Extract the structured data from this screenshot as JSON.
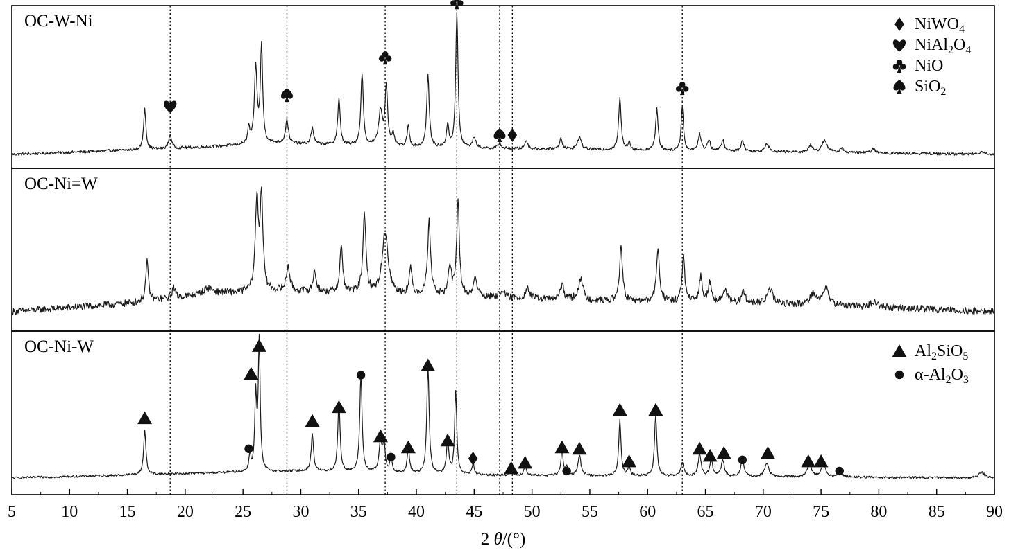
{
  "chart_data": {
    "type": "line",
    "title": "",
    "xlabel_prefix": "2 ",
    "xlabel_symbol": "θ",
    "xlabel_suffix": "/(°)",
    "xlim": [
      5,
      90
    ],
    "xticks": [
      5,
      10,
      15,
      20,
      25,
      30,
      35,
      40,
      45,
      50,
      55,
      60,
      65,
      70,
      75,
      80,
      85,
      90
    ],
    "reference_lines_x": [
      18.7,
      28.8,
      37.3,
      43.5,
      47.2,
      48.3,
      63.0
    ],
    "panels": [
      {
        "name": "OC-W-Ni",
        "baseline": 0.1,
        "noise": 0.01,
        "background": [
          [
            5,
            0.0
          ],
          [
            18,
            0.04
          ],
          [
            28,
            0.08
          ],
          [
            40,
            0.05
          ],
          [
            90,
            0.0
          ]
        ],
        "peaks": [
          [
            16.5,
            0.3,
            0.12
          ],
          [
            18.7,
            0.1,
            0.15
          ],
          [
            25.5,
            0.12,
            0.1
          ],
          [
            26.1,
            0.55,
            0.14
          ],
          [
            26.6,
            0.7,
            0.12
          ],
          [
            28.8,
            0.17,
            0.15
          ],
          [
            31.0,
            0.12,
            0.14
          ],
          [
            33.3,
            0.33,
            0.13
          ],
          [
            35.3,
            0.52,
            0.13
          ],
          [
            36.9,
            0.25,
            0.2
          ],
          [
            37.4,
            0.43,
            0.13
          ],
          [
            38.0,
            0.08,
            0.13
          ],
          [
            39.3,
            0.15,
            0.12
          ],
          [
            41.0,
            0.52,
            0.13
          ],
          [
            42.7,
            0.16,
            0.12
          ],
          [
            43.5,
            0.97,
            0.12
          ],
          [
            45.0,
            0.08,
            0.15
          ],
          [
            47.2,
            0.04,
            0.15
          ],
          [
            49.5,
            0.06,
            0.15
          ],
          [
            52.5,
            0.08,
            0.15
          ],
          [
            54.1,
            0.09,
            0.2
          ],
          [
            57.6,
            0.37,
            0.13
          ],
          [
            58.4,
            0.06,
            0.12
          ],
          [
            60.8,
            0.3,
            0.13
          ],
          [
            63.0,
            0.32,
            0.12
          ],
          [
            64.5,
            0.12,
            0.15
          ],
          [
            65.3,
            0.08,
            0.15
          ],
          [
            66.5,
            0.08,
            0.15
          ],
          [
            68.2,
            0.08,
            0.15
          ],
          [
            70.3,
            0.06,
            0.2
          ],
          [
            74.1,
            0.05,
            0.2
          ],
          [
            75.3,
            0.09,
            0.25
          ],
          [
            76.8,
            0.03,
            0.2
          ],
          [
            79.5,
            0.03,
            0.2
          ],
          [
            88.9,
            0.02,
            0.3
          ]
        ]
      },
      {
        "name": "OC-Ni=W",
        "baseline": 0.14,
        "noise": 0.025,
        "background": [
          [
            5,
            0.0
          ],
          [
            15,
            0.06
          ],
          [
            22,
            0.13
          ],
          [
            28,
            0.15
          ],
          [
            40,
            0.12
          ],
          [
            55,
            0.08
          ],
          [
            75,
            0.05
          ],
          [
            90,
            0.0
          ]
        ],
        "peaks": [
          [
            16.7,
            0.28,
            0.14
          ],
          [
            19.0,
            0.08,
            0.15
          ],
          [
            22.0,
            0.04,
            0.5
          ],
          [
            26.2,
            0.65,
            0.16
          ],
          [
            26.6,
            0.68,
            0.14
          ],
          [
            28.9,
            0.18,
            0.18
          ],
          [
            31.2,
            0.15,
            0.16
          ],
          [
            33.5,
            0.33,
            0.15
          ],
          [
            35.5,
            0.55,
            0.16
          ],
          [
            37.3,
            0.45,
            0.3
          ],
          [
            39.5,
            0.18,
            0.15
          ],
          [
            41.1,
            0.53,
            0.16
          ],
          [
            42.9,
            0.22,
            0.15
          ],
          [
            43.6,
            0.68,
            0.14
          ],
          [
            45.1,
            0.13,
            0.2
          ],
          [
            47.4,
            0.06,
            0.2
          ],
          [
            49.6,
            0.08,
            0.2
          ],
          [
            52.6,
            0.1,
            0.2
          ],
          [
            54.2,
            0.15,
            0.25
          ],
          [
            57.7,
            0.4,
            0.15
          ],
          [
            60.9,
            0.38,
            0.16
          ],
          [
            63.1,
            0.32,
            0.15
          ],
          [
            64.6,
            0.18,
            0.16
          ],
          [
            65.4,
            0.14,
            0.2
          ],
          [
            66.7,
            0.1,
            0.2
          ],
          [
            68.3,
            0.08,
            0.2
          ],
          [
            70.6,
            0.1,
            0.3
          ],
          [
            74.3,
            0.08,
            0.3
          ],
          [
            75.4,
            0.12,
            0.3
          ],
          [
            79.6,
            0.04,
            0.3
          ]
        ]
      },
      {
        "name": "OC-Ni-W",
        "baseline": 0.12,
        "noise": 0.008,
        "background": [
          [
            5,
            0.0
          ],
          [
            24,
            0.04
          ],
          [
            30,
            0.05
          ],
          [
            45,
            0.02
          ],
          [
            90,
            0.0
          ]
        ],
        "peaks": [
          [
            16.5,
            0.32,
            0.12
          ],
          [
            25.6,
            0.12,
            0.1
          ],
          [
            26.1,
            0.53,
            0.1
          ],
          [
            26.4,
            0.93,
            0.1
          ],
          [
            31.0,
            0.27,
            0.12
          ],
          [
            33.3,
            0.5,
            0.12
          ],
          [
            35.2,
            0.7,
            0.12
          ],
          [
            36.9,
            0.22,
            0.15
          ],
          [
            37.2,
            0.2,
            0.12
          ],
          [
            37.8,
            0.1,
            0.12
          ],
          [
            39.3,
            0.18,
            0.12
          ],
          [
            41.0,
            0.78,
            0.12
          ],
          [
            42.7,
            0.25,
            0.12
          ],
          [
            43.4,
            0.6,
            0.11
          ],
          [
            44.9,
            0.08,
            0.12
          ],
          [
            48.2,
            0.04,
            0.12
          ],
          [
            49.4,
            0.07,
            0.12
          ],
          [
            52.6,
            0.17,
            0.12
          ],
          [
            53.0,
            0.06,
            0.12
          ],
          [
            54.1,
            0.15,
            0.15
          ],
          [
            57.6,
            0.4,
            0.12
          ],
          [
            58.4,
            0.07,
            0.12
          ],
          [
            60.7,
            0.44,
            0.12
          ],
          [
            63.0,
            0.1,
            0.15
          ],
          [
            64.5,
            0.16,
            0.15
          ],
          [
            65.5,
            0.12,
            0.15
          ],
          [
            66.5,
            0.12,
            0.15
          ],
          [
            68.2,
            0.13,
            0.15
          ],
          [
            70.3,
            0.1,
            0.2
          ],
          [
            74.0,
            0.1,
            0.2
          ],
          [
            75.2,
            0.1,
            0.2
          ],
          [
            76.6,
            0.05,
            0.2
          ],
          [
            88.9,
            0.04,
            0.3
          ]
        ]
      }
    ],
    "markers": [
      {
        "panel": 0,
        "x": 18.7,
        "h": 0.45,
        "symbol": "heart"
      },
      {
        "panel": 0,
        "x": 28.8,
        "h": 0.53,
        "symbol": "spade"
      },
      {
        "panel": 0,
        "x": 37.3,
        "h": 0.8,
        "symbol": "club"
      },
      {
        "panel": 0,
        "x": 43.5,
        "h": 1.2,
        "symbol": "club"
      },
      {
        "panel": 0,
        "x": 47.2,
        "h": 0.24,
        "symbol": "spade"
      },
      {
        "panel": 0,
        "x": 48.3,
        "h": 0.24,
        "symbol": "diamond"
      },
      {
        "panel": 0,
        "x": 63.0,
        "h": 0.58,
        "symbol": "club"
      },
      {
        "panel": 2,
        "x": 16.5,
        "h": 0.55,
        "symbol": "triangle"
      },
      {
        "panel": 2,
        "x": 25.5,
        "h": 0.33,
        "symbol": "circle"
      },
      {
        "panel": 2,
        "x": 25.7,
        "h": 0.87,
        "symbol": "triangle"
      },
      {
        "panel": 2,
        "x": 26.4,
        "h": 1.07,
        "symbol": "triangle"
      },
      {
        "panel": 2,
        "x": 31.0,
        "h": 0.53,
        "symbol": "triangle"
      },
      {
        "panel": 2,
        "x": 33.3,
        "h": 0.63,
        "symbol": "triangle"
      },
      {
        "panel": 2,
        "x": 35.2,
        "h": 0.86,
        "symbol": "circle"
      },
      {
        "panel": 2,
        "x": 36.9,
        "h": 0.42,
        "symbol": "triangle"
      },
      {
        "panel": 2,
        "x": 37.8,
        "h": 0.27,
        "symbol": "circle"
      },
      {
        "panel": 2,
        "x": 39.3,
        "h": 0.34,
        "symbol": "triangle"
      },
      {
        "panel": 2,
        "x": 41.0,
        "h": 0.93,
        "symbol": "triangle"
      },
      {
        "panel": 2,
        "x": 42.7,
        "h": 0.39,
        "symbol": "triangle"
      },
      {
        "panel": 2,
        "x": 44.9,
        "h": 0.26,
        "symbol": "diamond"
      },
      {
        "panel": 2,
        "x": 48.2,
        "h": 0.19,
        "symbol": "triangle"
      },
      {
        "panel": 2,
        "x": 49.4,
        "h": 0.23,
        "symbol": "triangle"
      },
      {
        "panel": 2,
        "x": 52.6,
        "h": 0.34,
        "symbol": "triangle"
      },
      {
        "panel": 2,
        "x": 53.0,
        "h": 0.17,
        "symbol": "circle"
      },
      {
        "panel": 2,
        "x": 54.1,
        "h": 0.33,
        "symbol": "triangle"
      },
      {
        "panel": 2,
        "x": 57.6,
        "h": 0.61,
        "symbol": "triangle"
      },
      {
        "panel": 2,
        "x": 58.4,
        "h": 0.24,
        "symbol": "triangle"
      },
      {
        "panel": 2,
        "x": 60.7,
        "h": 0.61,
        "symbol": "triangle"
      },
      {
        "panel": 2,
        "x": 64.5,
        "h": 0.33,
        "symbol": "triangle"
      },
      {
        "panel": 2,
        "x": 65.4,
        "h": 0.28,
        "symbol": "triangle"
      },
      {
        "panel": 2,
        "x": 66.6,
        "h": 0.3,
        "symbol": "triangle"
      },
      {
        "panel": 2,
        "x": 68.2,
        "h": 0.25,
        "symbol": "circle"
      },
      {
        "panel": 2,
        "x": 70.4,
        "h": 0.3,
        "symbol": "triangle"
      },
      {
        "panel": 2,
        "x": 73.9,
        "h": 0.24,
        "symbol": "triangle"
      },
      {
        "panel": 2,
        "x": 75.0,
        "h": 0.24,
        "symbol": "triangle"
      },
      {
        "panel": 2,
        "x": 76.6,
        "h": 0.17,
        "symbol": "circle"
      }
    ],
    "legend_top": {
      "placement": "top-right of first panel",
      "entries": [
        {
          "symbol": "diamond",
          "parts": [
            [
              "Ni",
              ""
            ],
            [
              "W",
              ""
            ],
            [
              "O",
              ""
            ],
            [
              "4",
              "sub"
            ]
          ]
        },
        {
          "symbol": "heart",
          "parts": [
            [
              "NiAl",
              ""
            ],
            [
              "2",
              "sub"
            ],
            [
              "O",
              ""
            ],
            [
              "4",
              "sub"
            ]
          ]
        },
        {
          "symbol": "club",
          "parts": [
            [
              "NiO",
              ""
            ]
          ]
        },
        {
          "symbol": "spade",
          "parts": [
            [
              "SiO",
              ""
            ],
            [
              "2",
              "sub"
            ]
          ]
        }
      ]
    },
    "legend_bottom": {
      "placement": "top-right of third panel",
      "entries": [
        {
          "symbol": "triangle",
          "parts": [
            [
              "Al",
              ""
            ],
            [
              "2",
              "sub"
            ],
            [
              "SiO",
              ""
            ],
            [
              "5",
              "sub"
            ]
          ]
        },
        {
          "symbol": "circle",
          "parts": [
            [
              "α-Al",
              ""
            ],
            [
              "2",
              "sub"
            ],
            [
              "O",
              ""
            ],
            [
              "3",
              "sub"
            ]
          ]
        }
      ]
    }
  }
}
